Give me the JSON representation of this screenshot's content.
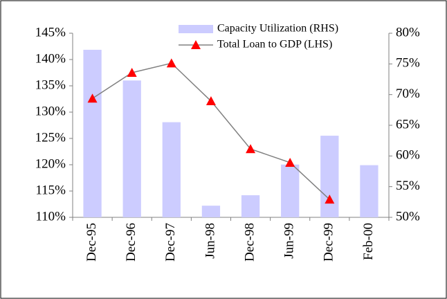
{
  "chart_data": {
    "type": "bar-line",
    "categories": [
      "Dec-95",
      "Dec-96",
      "Dec-97",
      "Jun-98",
      "Dec-98",
      "Jun-99",
      "Dec-99",
      "Feb-00"
    ],
    "series": [
      {
        "name": "Capacity Utilization (RHS)",
        "type": "bar",
        "axis": "y2",
        "color": "#ccccff",
        "values": [
          77.3,
          72.3,
          65.5,
          51.9,
          53.6,
          58.6,
          63.3,
          58.5
        ]
      },
      {
        "name": "Total Loan to GDP (LHS)",
        "type": "line",
        "axis": "y",
        "color": "#808080",
        "marker_color": "#ff0000",
        "values": [
          132.6,
          137.5,
          139.3,
          132.1,
          123.0,
          120.4,
          113.4,
          null
        ]
      }
    ],
    "ylim": [
      110,
      145
    ],
    "yticks": [
      {
        "value": 110,
        "label": "110%"
      },
      {
        "value": 115,
        "label": "115%"
      },
      {
        "value": 120,
        "label": "120%"
      },
      {
        "value": 125,
        "label": "125%"
      },
      {
        "value": 130,
        "label": "130%"
      },
      {
        "value": 135,
        "label": "135%"
      },
      {
        "value": 140,
        "label": "140%"
      },
      {
        "value": 145,
        "label": "145%"
      }
    ],
    "y2lim": [
      50,
      80
    ],
    "y2ticks": [
      {
        "value": 50,
        "label": "50%"
      },
      {
        "value": 55,
        "label": "55%"
      },
      {
        "value": 60,
        "label": "60%"
      },
      {
        "value": 65,
        "label": "65%"
      },
      {
        "value": 70,
        "label": "70%"
      },
      {
        "value": 75,
        "label": "75%"
      },
      {
        "value": 80,
        "label": "80%"
      }
    ],
    "grid": false,
    "legend": "top"
  }
}
